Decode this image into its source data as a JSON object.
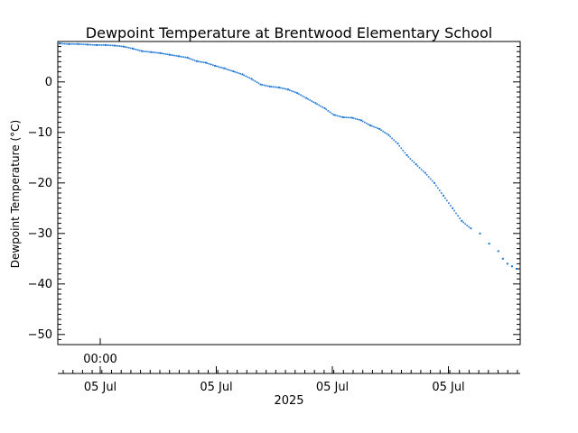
{
  "chart_data": {
    "type": "scatter",
    "title": "Dewpoint Temperature at Brentwood Elementary School",
    "ylabel": "Dewpoint Temperature (°C)",
    "xlabel": "2025",
    "ylim": [
      -52,
      8
    ],
    "yticks": [
      0,
      -10,
      -20,
      -30,
      -40,
      -50
    ],
    "xticks": [
      "05 Jul",
      "05 Jul",
      "05 Jul",
      "05 Jul"
    ],
    "time_label": "00:00",
    "grid": false,
    "series": [
      {
        "color": "#1f77d4",
        "x": [
          0.0,
          0.02,
          0.04,
          0.06,
          0.08,
          0.1,
          0.12,
          0.14,
          0.16,
          0.18,
          0.2,
          0.22,
          0.24,
          0.26,
          0.28,
          0.3,
          0.32,
          0.34,
          0.36,
          0.38,
          0.4,
          0.42,
          0.44,
          0.46,
          0.48,
          0.5,
          0.52,
          0.54,
          0.56,
          0.58,
          0.6,
          0.62,
          0.64,
          0.66,
          0.68,
          0.7,
          0.72,
          0.74,
          0.76,
          0.78,
          0.8,
          0.82,
          0.84,
          0.86,
          0.88,
          0.9,
          0.92,
          0.94,
          0.96,
          0.97,
          0.98,
          0.99,
          1.0
        ],
        "y": [
          7.6,
          7.5,
          7.5,
          7.4,
          7.3,
          7.3,
          7.2,
          7.0,
          6.6,
          6.1,
          5.9,
          5.7,
          5.4,
          5.1,
          4.8,
          4.1,
          3.8,
          3.2,
          2.7,
          2.1,
          1.5,
          0.6,
          -0.5,
          -0.9,
          -1.1,
          -1.5,
          -2.2,
          -3.2,
          -4.2,
          -5.2,
          -6.5,
          -7.0,
          -7.1,
          -7.6,
          -8.6,
          -9.3,
          -10.5,
          -12.2,
          -14.5,
          -16.3,
          -18.0,
          -20.0,
          -22.5,
          -25.0,
          -27.5,
          -29.0,
          -30.0,
          -32.0,
          -33.5,
          -35.0,
          -36.0,
          -36.5,
          -37.0
        ]
      }
    ]
  }
}
